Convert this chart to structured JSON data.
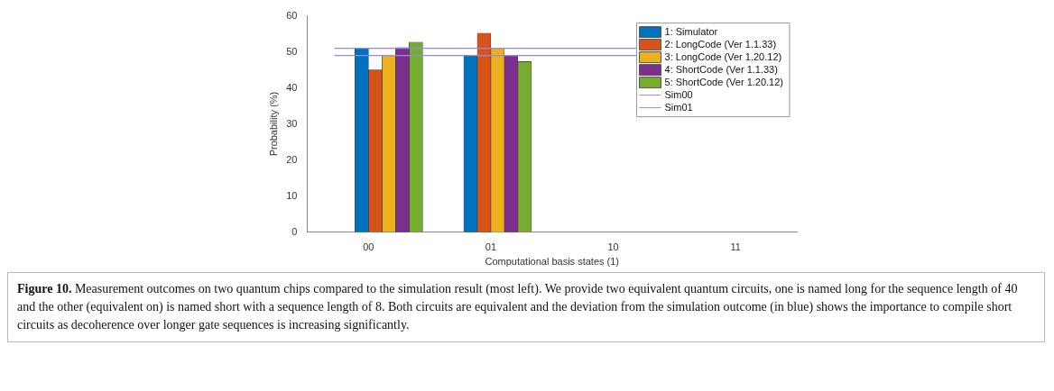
{
  "chart_data": {
    "type": "bar",
    "xlabel": "Computational basis states (1)",
    "ylabel": "Probability (%)",
    "categories": [
      "00",
      "01",
      "10",
      "11"
    ],
    "series": [
      {
        "name": "1: Simulator",
        "color": "#0072bd",
        "values": [
          51,
          49,
          0,
          0
        ]
      },
      {
        "name": "2: LongCode (Ver 1.1.33)",
        "color": "#d95319",
        "values": [
          45,
          55.2,
          0,
          0
        ]
      },
      {
        "name": "3: LongCode (Ver 1.20.12)",
        "color": "#edb120",
        "values": [
          49,
          51,
          0,
          0
        ]
      },
      {
        "name": "4: ShortCode (Ver 1.1.33)",
        "color": "#7e2f8e",
        "values": [
          51.2,
          49,
          0,
          0
        ]
      },
      {
        "name": "5: ShortCode (Ver 1.20.12)",
        "color": "#77ac30",
        "values": [
          52.7,
          47.3,
          0,
          0
        ]
      }
    ],
    "ref_lines": [
      {
        "axis": "y",
        "value": 51,
        "label": "Sim00",
        "color": "#8c8cf0"
      },
      {
        "axis": "y",
        "value": 49,
        "label": "Sim01",
        "color": "#8c8cf0"
      }
    ],
    "ylim": [
      0,
      60
    ],
    "yticks": [
      0,
      10,
      20,
      30,
      40,
      50,
      60
    ],
    "grid": false,
    "legend": "top right",
    "annotations": [
      "Figure 10.",
      "Measurement outcomes on two quantum chips compared to the simulation result (most left). We provide two equivalent quantum circuits, one is named long for the sequence length of 40 and the other (equivalent on) is named short with a sequence length of 8. Both circuits are equivalent and the deviation from the simulation outcome (in blue) shows the importance to compile short circuits as decoherence over longer gate sequences is increasing significantly."
    ]
  }
}
